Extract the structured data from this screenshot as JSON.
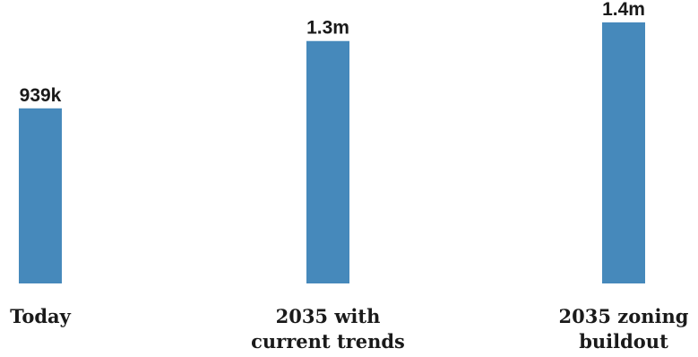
{
  "chart_data": {
    "type": "bar",
    "categories": [
      [
        "Today"
      ],
      [
        "2035 with",
        "current trends"
      ],
      [
        "2035 zoning",
        "buildout"
      ]
    ],
    "values": [
      939000,
      1300000,
      1400000
    ],
    "data_labels": [
      "939k",
      "1.3m",
      "1.4m"
    ],
    "bar_color": "#4689bb",
    "ylim": [
      0,
      1520000
    ],
    "title": "",
    "xlabel": "",
    "ylabel": "",
    "grid": false,
    "legend": "none"
  }
}
